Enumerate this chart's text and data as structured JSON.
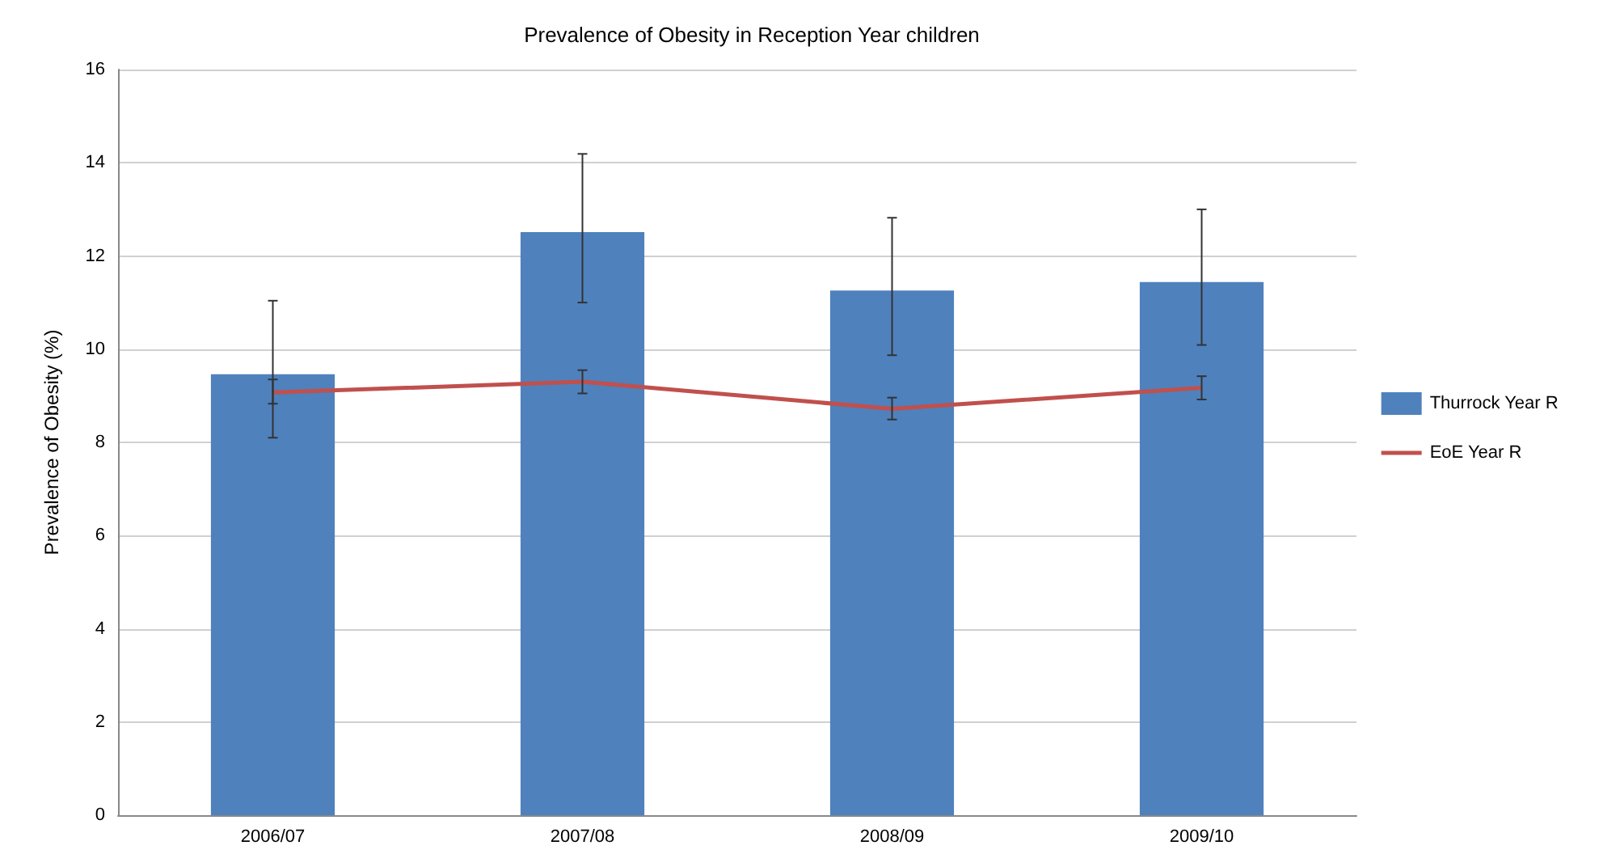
{
  "chart_data": {
    "type": "bar",
    "title": "Prevalence of Obesity in Reception Year children",
    "ylabel": "Prevalence of Obesity (%)",
    "categories": [
      "2006/07",
      "2007/08",
      "2008/09",
      "2009/10"
    ],
    "series": [
      {
        "name": "Thurrock Year R",
        "color": "#4f81bd",
        "values": [
          9.46,
          12.51,
          11.26,
          11.44
        ],
        "errors": [
          [
            8.1,
            11.04
          ],
          [
            11.0,
            14.19
          ],
          [
            9.87,
            12.82
          ],
          [
            10.09,
            13.0
          ]
        ]
      },
      {
        "name": "EoE Year R",
        "type": "line",
        "color": "#c0504d",
        "values": [
          9.07,
          9.3,
          8.72,
          9.17
        ],
        "errors": [
          [
            8.83,
            9.35
          ],
          [
            9.05,
            9.55
          ],
          [
            8.49,
            8.96
          ],
          [
            8.92,
            9.42
          ]
        ]
      }
    ],
    "ylim": [
      0,
      16
    ],
    "yticks": [
      0,
      2,
      4,
      6,
      8,
      10,
      12,
      14,
      16
    ],
    "grid": "y",
    "legend": "right",
    "marker": "none"
  }
}
